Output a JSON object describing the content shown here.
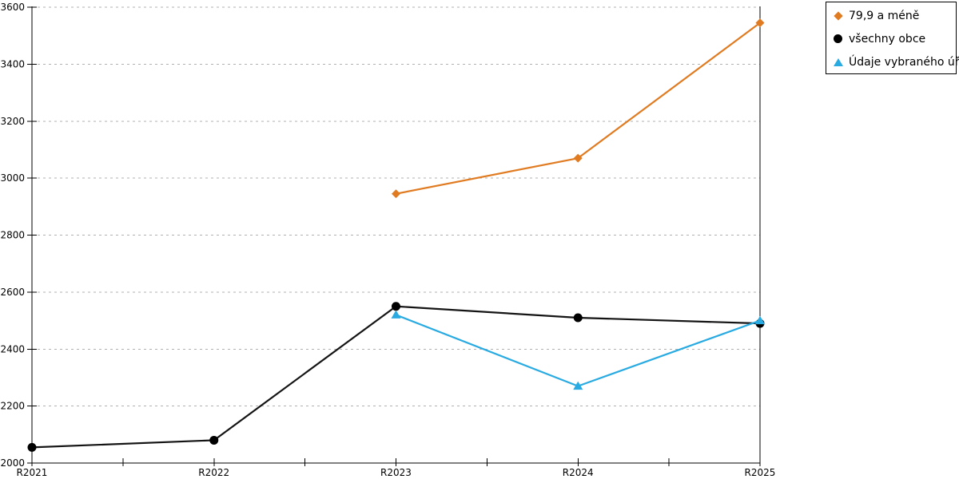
{
  "chart_data": {
    "type": "line",
    "title": "",
    "xlabel": "",
    "ylabel": "",
    "x_categories": [
      "R2021",
      "R2022",
      "R2023",
      "R2024",
      "R2025"
    ],
    "y_ticks": [
      2000,
      2200,
      2400,
      2600,
      2800,
      3000,
      3200,
      3400,
      3600
    ],
    "ylim": [
      2000,
      3600
    ],
    "grid": "horizontal-dashed",
    "grid_color": "#b0b0b0",
    "axis_color": "#000000",
    "legend_position": "top-right-outside",
    "series": [
      {
        "name": "79,9 a méně",
        "marker": "diamond",
        "color": "#E07B21",
        "values": [
          null,
          null,
          2945,
          3070,
          3545
        ]
      },
      {
        "name": "všechny obce",
        "marker": "circle",
        "color": "#141414",
        "values": [
          2055,
          2080,
          2550,
          2510,
          2490
        ]
      },
      {
        "name": "Údaje vybraného úřadu",
        "marker": "triangle-up",
        "color": "#29ABE2",
        "values": [
          null,
          null,
          2520,
          2270,
          2500
        ]
      }
    ]
  }
}
